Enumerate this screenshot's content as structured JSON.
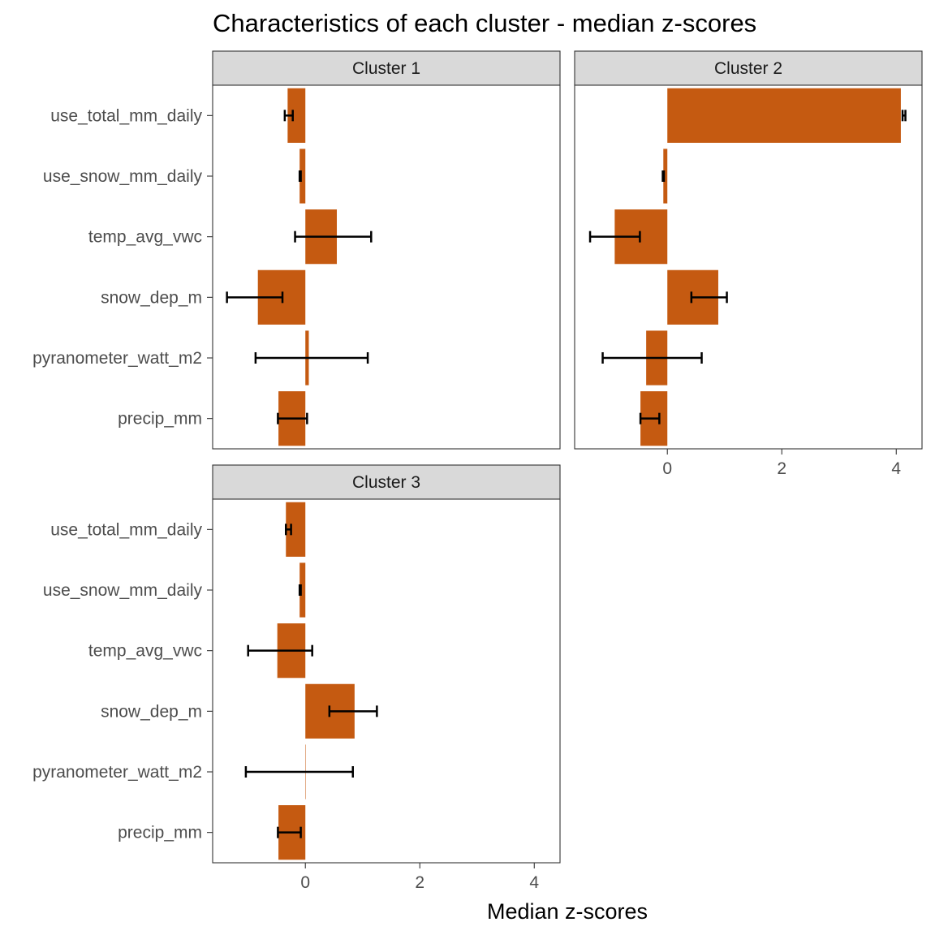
{
  "chart_data": {
    "type": "bar",
    "orientation": "horizontal",
    "title": "Characteristics of each cluster - median z-scores",
    "xlabel": "Median z-scores",
    "ylabel": "",
    "xlim": [
      -1.62,
      4.45
    ],
    "x_ticks": [
      0,
      2,
      4
    ],
    "x_tick_labels": [
      "0",
      "2",
      "4"
    ],
    "categories": [
      "use_total_mm_daily",
      "use_snow_mm_daily",
      "temp_avg_vwc",
      "snow_dep_m",
      "pyranometer_watt_m2",
      "precip_mm"
    ],
    "bar_color": "#C55A11",
    "grid": false,
    "legend": "none",
    "panels": [
      {
        "name": "Cluster 1",
        "values": [
          -0.31,
          -0.1,
          0.55,
          -0.83,
          0.06,
          -0.47
        ],
        "error_low": [
          -0.36,
          -0.1,
          -0.18,
          -1.37,
          -0.87,
          -0.48
        ],
        "error_high": [
          -0.22,
          -0.08,
          1.15,
          -0.4,
          1.09,
          0.03
        ]
      },
      {
        "name": "Cluster 2",
        "values": [
          4.08,
          -0.07,
          -0.92,
          0.89,
          -0.37,
          -0.47
        ],
        "error_low": [
          4.11,
          -0.08,
          -1.35,
          0.42,
          -1.13,
          -0.47
        ],
        "error_high": [
          4.16,
          -0.06,
          -0.48,
          1.04,
          0.6,
          -0.14
        ]
      },
      {
        "name": "Cluster 3",
        "values": [
          -0.34,
          -0.1,
          -0.49,
          0.86,
          0.0,
          -0.47
        ],
        "error_low": [
          -0.34,
          -0.1,
          -1.0,
          0.42,
          -1.04,
          -0.48
        ],
        "error_high": [
          -0.25,
          -0.08,
          0.12,
          1.25,
          0.83,
          -0.08
        ]
      }
    ]
  }
}
